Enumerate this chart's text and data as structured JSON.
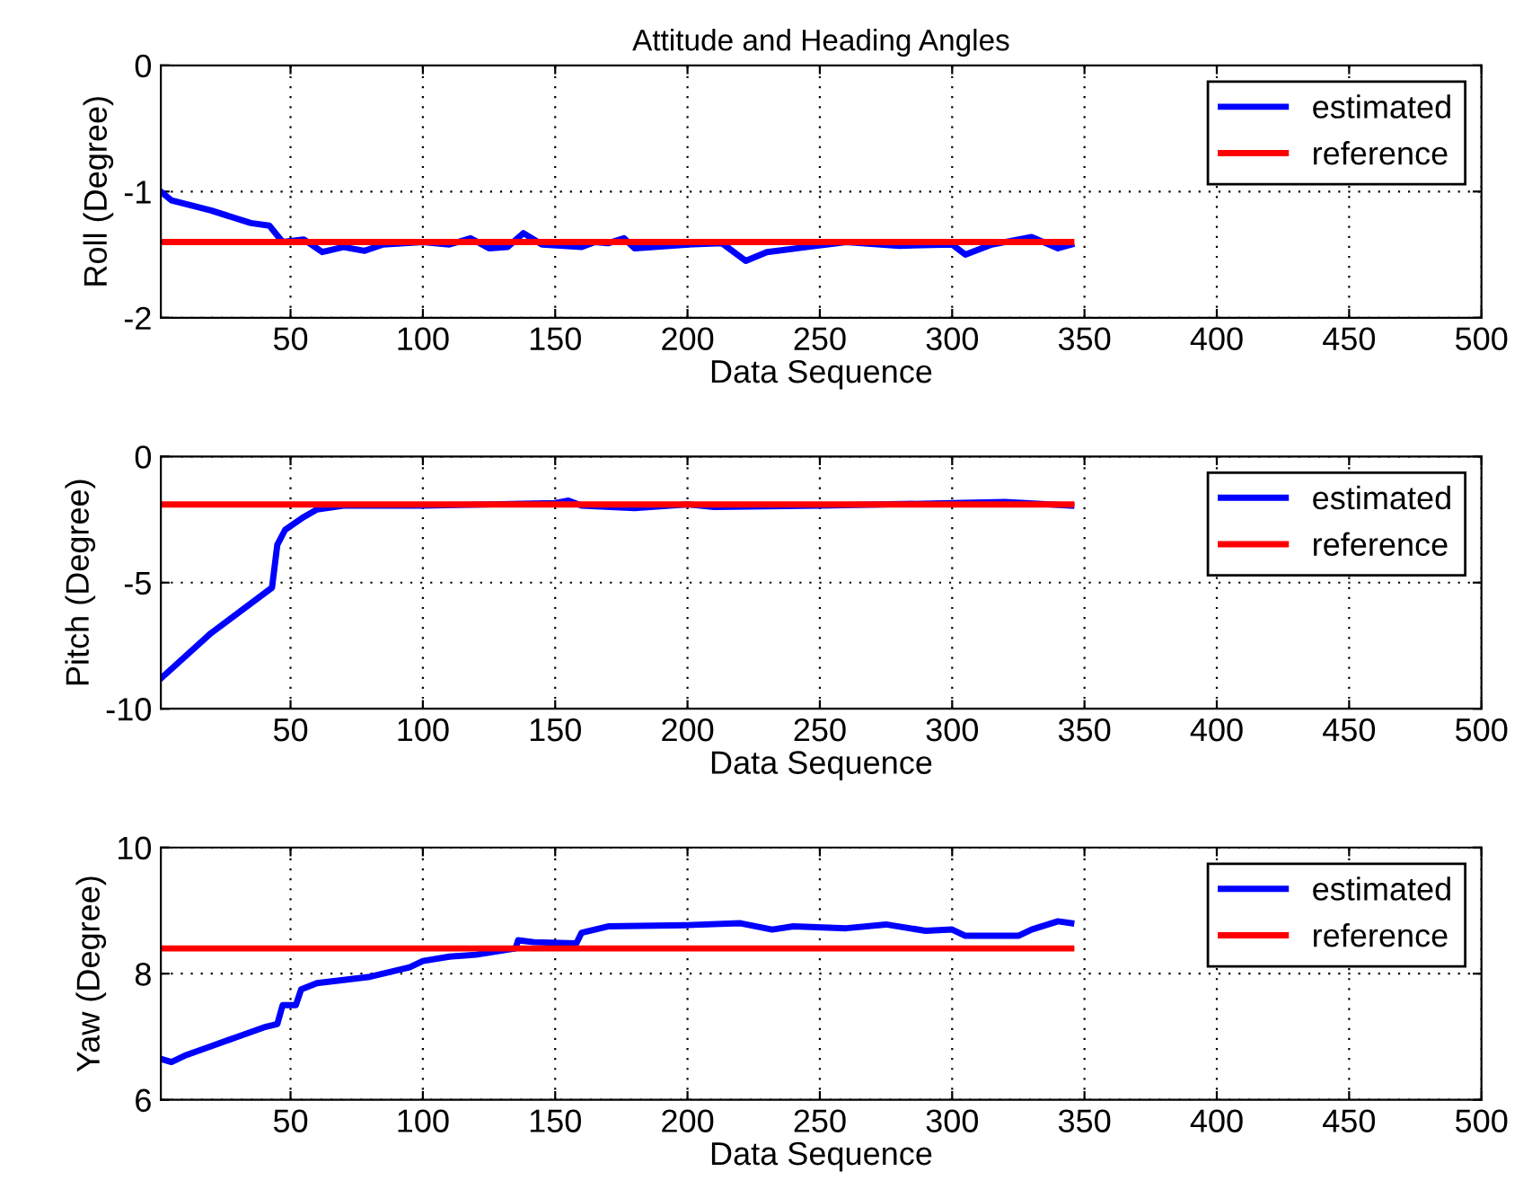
{
  "chart_data": [
    {
      "type": "line",
      "title": "Attitude and Heading Angles",
      "xlabel": "Data Sequence",
      "ylabel": "Roll (Degree)",
      "xlim": [
        1,
        500
      ],
      "xticks": [
        50,
        100,
        150,
        200,
        250,
        300,
        350,
        400,
        450,
        500
      ],
      "ylim": [
        -2,
        0
      ],
      "yticks": [
        -2,
        -1,
        0
      ],
      "grid": true,
      "legend": "top right",
      "series": [
        {
          "name": "estimated",
          "color": "#0000ff",
          "x": [
            1,
            5,
            20,
            35,
            42,
            47,
            55,
            62,
            70,
            78,
            85,
            100,
            110,
            118,
            125,
            132,
            138,
            145,
            160,
            165,
            170,
            176,
            180,
            200,
            213,
            215,
            222,
            230,
            245,
            260,
            280,
            300,
            305,
            315,
            330,
            340,
            345
          ],
          "values": [
            -1.0,
            -1.07,
            -1.15,
            -1.25,
            -1.27,
            -1.4,
            -1.38,
            -1.48,
            -1.44,
            -1.47,
            -1.42,
            -1.4,
            -1.42,
            -1.37,
            -1.45,
            -1.44,
            -1.33,
            -1.42,
            -1.44,
            -1.4,
            -1.41,
            -1.37,
            -1.45,
            -1.42,
            -1.41,
            -1.44,
            -1.55,
            -1.48,
            -1.44,
            -1.4,
            -1.43,
            -1.42,
            -1.5,
            -1.42,
            -1.36,
            -1.45,
            -1.42
          ]
        },
        {
          "name": "reference",
          "color": "#ff0000",
          "x": [
            1,
            345
          ],
          "values": [
            -1.4,
            -1.4
          ]
        }
      ]
    },
    {
      "type": "line",
      "xlabel": "Data Sequence",
      "ylabel": "Pitch (Degree)",
      "xlim": [
        1,
        500
      ],
      "xticks": [
        50,
        100,
        150,
        200,
        250,
        300,
        350,
        400,
        450,
        500
      ],
      "ylim": [
        -10,
        0
      ],
      "yticks": [
        -10,
        -5,
        0
      ],
      "grid": true,
      "legend": "top right",
      "series": [
        {
          "name": "estimated",
          "color": "#0000ff",
          "x": [
            1,
            20,
            43,
            45,
            48,
            55,
            60,
            70,
            100,
            150,
            155,
            160,
            180,
            200,
            210,
            250,
            300,
            320,
            345
          ],
          "values": [
            -8.8,
            -7.0,
            -5.2,
            -3.5,
            -2.9,
            -2.4,
            -2.1,
            -1.95,
            -1.95,
            -1.85,
            -1.75,
            -1.95,
            -2.05,
            -1.9,
            -2.0,
            -1.95,
            -1.85,
            -1.8,
            -1.95
          ]
        },
        {
          "name": "reference",
          "color": "#ff0000",
          "x": [
            1,
            345
          ],
          "values": [
            -1.9,
            -1.9
          ]
        }
      ]
    },
    {
      "type": "line",
      "xlabel": "Data Sequence",
      "ylabel": "Yaw (Degree)",
      "xlim": [
        1,
        500
      ],
      "xticks": [
        50,
        100,
        150,
        200,
        250,
        300,
        350,
        400,
        450,
        500
      ],
      "ylim": [
        6,
        10
      ],
      "yticks": [
        6,
        8,
        10
      ],
      "grid": true,
      "legend": "top right",
      "series": [
        {
          "name": "estimated",
          "color": "#0000ff",
          "x": [
            1,
            5,
            10,
            20,
            30,
            40,
            45,
            47,
            52,
            54,
            60,
            70,
            80,
            90,
            95,
            100,
            110,
            120,
            135,
            136,
            142,
            158,
            160,
            170,
            200,
            220,
            232,
            240,
            260,
            275,
            290,
            300,
            305,
            325,
            330,
            340,
            345
          ],
          "values": [
            6.65,
            6.6,
            6.7,
            6.85,
            7.0,
            7.15,
            7.2,
            7.5,
            7.5,
            7.75,
            7.85,
            7.9,
            7.95,
            8.05,
            8.1,
            8.2,
            8.27,
            8.3,
            8.4,
            8.53,
            8.5,
            8.48,
            8.65,
            8.75,
            8.77,
            8.8,
            8.7,
            8.75,
            8.72,
            8.78,
            8.68,
            8.7,
            8.6,
            8.6,
            8.7,
            8.83,
            8.8
          ]
        },
        {
          "name": "reference",
          "color": "#ff0000",
          "x": [
            1,
            345
          ],
          "values": [
            8.4,
            8.4
          ]
        }
      ]
    }
  ]
}
